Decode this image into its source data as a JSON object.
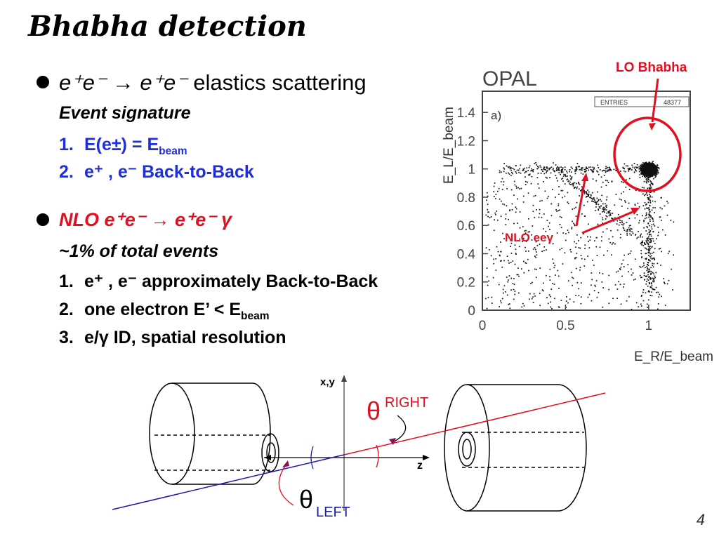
{
  "slide": {
    "title": "Bhabha detection",
    "page_number": "4"
  },
  "section1": {
    "reaction_text": "e⁺e⁻ → e⁺e⁻",
    "reaction_rest": "elastics scattering",
    "subheading": "Event signature",
    "items": [
      {
        "num": "1.",
        "text": "E(e±)  =  E",
        "sub": "beam"
      },
      {
        "num": "2.",
        "text": "e⁺ , e⁻  Back-to-Back"
      }
    ]
  },
  "section2": {
    "reaction_text": "NLO  e⁺e⁻ → e⁺e⁻ γ",
    "subheading": "~1% of total events",
    "items": [
      {
        "num": "1.",
        "text": "e⁺ , e⁻  approximately Back-to-Back"
      },
      {
        "num": "2.",
        "text": "one electron E’ < E",
        "sub": "beam"
      },
      {
        "num": "3.",
        "text": "e/γ  ID, spatial resolution"
      }
    ]
  },
  "scatter_plot": {
    "experiment_label": "OPAL",
    "panel_label": "a)",
    "entries_label": "ENTRIES",
    "entries_value": "48377",
    "annotation_lo": "LO Bhabha",
    "annotation_nlo": "NLO eeγ",
    "ylabel": "E_L/E_beam",
    "xlabel": "E_R/E_beam",
    "xticks": [
      "0",
      "0.5",
      "1"
    ],
    "yticks": [
      "0",
      "0.2",
      "0.4",
      "0.6",
      "0.8",
      "1",
      "1.2",
      "1.4"
    ],
    "colors": {
      "annotation": "#e01020"
    }
  },
  "detector_diagram": {
    "axis_xy_label": "x,y",
    "axis_z_label": "z",
    "theta_right_symbol": "θ",
    "theta_right_label": "RIGHT",
    "theta_left_symbol": "θ",
    "theta_left_label": "LEFT",
    "colors": {
      "right_track": "#e01020",
      "left_track": "#1a1aa8",
      "theta_right": "#e01020",
      "theta_left": "#000000"
    }
  }
}
